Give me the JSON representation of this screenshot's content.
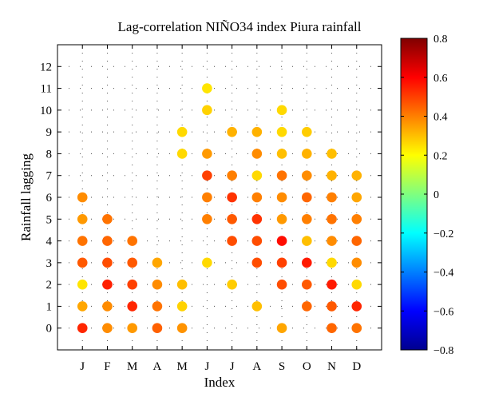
{
  "chart_data": {
    "type": "scatter",
    "title": "Lag-correlation NIÑO34 index Piura rainfall",
    "xlabel": "Index",
    "ylabel": "Rainfall lagging",
    "categories": [
      "J",
      "F",
      "M",
      "A",
      "M",
      "J",
      "J",
      "A",
      "S",
      "O",
      "N",
      "D"
    ],
    "yticks": [
      0,
      1,
      2,
      3,
      4,
      5,
      6,
      7,
      8,
      9,
      10,
      11,
      12
    ],
    "ylim": [
      -1,
      13
    ],
    "colorbar": {
      "min": -0.8,
      "max": 0.8,
      "colormap": "jet",
      "ticks": [
        "0.8",
        "0.6",
        "0.4",
        "0.2",
        "0",
        "−0.2",
        "−0.4",
        "−0.6",
        "−0.8"
      ]
    },
    "grid": "dotted",
    "points": [
      {
        "x": "J",
        "lag": 0,
        "r": 0.54
      },
      {
        "x": "J",
        "lag": 1,
        "r": 0.34
      },
      {
        "x": "J",
        "lag": 2,
        "r": 0.24
      },
      {
        "x": "J",
        "lag": 3,
        "r": 0.46
      },
      {
        "x": "J",
        "lag": 4,
        "r": 0.42
      },
      {
        "x": "J",
        "lag": 5,
        "r": 0.36
      },
      {
        "x": "J",
        "lag": 6,
        "r": 0.38
      },
      {
        "x": "F",
        "lag": 0,
        "r": 0.38
      },
      {
        "x": "F",
        "lag": 1,
        "r": 0.38
      },
      {
        "x": "F",
        "lag": 2,
        "r": 0.55
      },
      {
        "x": "F",
        "lag": 3,
        "r": 0.48
      },
      {
        "x": "F",
        "lag": 4,
        "r": 0.44
      },
      {
        "x": "F",
        "lag": 5,
        "r": 0.42
      },
      {
        "x": "M",
        "lag": 0,
        "r": 0.36
      },
      {
        "x": "M",
        "lag": 1,
        "r": 0.54
      },
      {
        "x": "M",
        "lag": 2,
        "r": 0.5
      },
      {
        "x": "M",
        "lag": 3,
        "r": 0.46
      },
      {
        "x": "M",
        "lag": 4,
        "r": 0.42
      },
      {
        "x": "A",
        "lag": 0,
        "r": 0.45
      },
      {
        "x": "A",
        "lag": 1,
        "r": 0.42
      },
      {
        "x": "A",
        "lag": 2,
        "r": 0.38
      },
      {
        "x": "A",
        "lag": 3,
        "r": 0.34
      },
      {
        "x": "M",
        "lag": 0,
        "r": 0.37,
        "col": 4
      },
      {
        "x": "M",
        "lag": 1,
        "r": 0.27,
        "col": 4
      },
      {
        "x": "M",
        "lag": 2,
        "r": 0.3,
        "col": 4
      },
      {
        "x": "M",
        "lag": 8,
        "r": 0.26,
        "col": 4
      },
      {
        "x": "M",
        "lag": 9,
        "r": 0.26,
        "col": 4
      },
      {
        "x": "J",
        "lag": 3,
        "r": 0.26,
        "col": 5
      },
      {
        "x": "J",
        "lag": 5,
        "r": 0.4,
        "col": 5
      },
      {
        "x": "J",
        "lag": 6,
        "r": 0.4,
        "col": 5
      },
      {
        "x": "J",
        "lag": 7,
        "r": 0.5,
        "col": 5
      },
      {
        "x": "J",
        "lag": 8,
        "r": 0.36,
        "col": 5
      },
      {
        "x": "J",
        "lag": 10,
        "r": 0.27,
        "col": 5
      },
      {
        "x": "J",
        "lag": 11,
        "r": 0.24,
        "col": 5
      },
      {
        "x": "J",
        "lag": 2,
        "r": 0.28,
        "col": 6
      },
      {
        "x": "J",
        "lag": 4,
        "r": 0.48,
        "col": 6
      },
      {
        "x": "J",
        "lag": 5,
        "r": 0.46,
        "col": 6
      },
      {
        "x": "J",
        "lag": 6,
        "r": 0.52,
        "col": 6
      },
      {
        "x": "J",
        "lag": 7,
        "r": 0.4,
        "col": 6
      },
      {
        "x": "J",
        "lag": 9,
        "r": 0.32,
        "col": 6
      },
      {
        "x": "A",
        "lag": 1,
        "r": 0.3,
        "col": 7
      },
      {
        "x": "A",
        "lag": 3,
        "r": 0.48,
        "col": 7
      },
      {
        "x": "A",
        "lag": 4,
        "r": 0.48,
        "col": 7
      },
      {
        "x": "A",
        "lag": 5,
        "r": 0.52,
        "col": 7
      },
      {
        "x": "A",
        "lag": 6,
        "r": 0.4,
        "col": 7
      },
      {
        "x": "A",
        "lag": 7,
        "r": 0.26,
        "col": 7
      },
      {
        "x": "A",
        "lag": 8,
        "r": 0.38,
        "col": 7
      },
      {
        "x": "A",
        "lag": 9,
        "r": 0.32,
        "col": 7
      },
      {
        "x": "S",
        "lag": 0,
        "r": 0.34
      },
      {
        "x": "S",
        "lag": 2,
        "r": 0.48
      },
      {
        "x": "S",
        "lag": 3,
        "r": 0.5
      },
      {
        "x": "S",
        "lag": 4,
        "r": 0.58
      },
      {
        "x": "S",
        "lag": 5,
        "r": 0.36
      },
      {
        "x": "S",
        "lag": 6,
        "r": 0.38
      },
      {
        "x": "S",
        "lag": 7,
        "r": 0.42
      },
      {
        "x": "S",
        "lag": 8,
        "r": 0.3
      },
      {
        "x": "S",
        "lag": 9,
        "r": 0.26
      },
      {
        "x": "S",
        "lag": 10,
        "r": 0.26
      },
      {
        "x": "O",
        "lag": 1,
        "r": 0.44
      },
      {
        "x": "O",
        "lag": 2,
        "r": 0.46
      },
      {
        "x": "O",
        "lag": 3,
        "r": 0.56
      },
      {
        "x": "O",
        "lag": 4,
        "r": 0.3
      },
      {
        "x": "O",
        "lag": 5,
        "r": 0.4
      },
      {
        "x": "O",
        "lag": 6,
        "r": 0.44
      },
      {
        "x": "O",
        "lag": 7,
        "r": 0.38
      },
      {
        "x": "O",
        "lag": 8,
        "r": 0.32
      },
      {
        "x": "O",
        "lag": 9,
        "r": 0.28
      },
      {
        "x": "N",
        "lag": 0,
        "r": 0.44
      },
      {
        "x": "N",
        "lag": 1,
        "r": 0.46
      },
      {
        "x": "N",
        "lag": 2,
        "r": 0.56
      },
      {
        "x": "N",
        "lag": 3,
        "r": 0.26
      },
      {
        "x": "N",
        "lag": 4,
        "r": 0.38
      },
      {
        "x": "N",
        "lag": 5,
        "r": 0.42
      },
      {
        "x": "N",
        "lag": 6,
        "r": 0.4
      },
      {
        "x": "N",
        "lag": 7,
        "r": 0.32
      },
      {
        "x": "N",
        "lag": 8,
        "r": 0.3
      },
      {
        "x": "D",
        "lag": 0,
        "r": 0.42
      },
      {
        "x": "D",
        "lag": 1,
        "r": 0.54
      },
      {
        "x": "D",
        "lag": 2,
        "r": 0.26
      },
      {
        "x": "D",
        "lag": 3,
        "r": 0.38
      },
      {
        "x": "D",
        "lag": 4,
        "r": 0.44
      },
      {
        "x": "D",
        "lag": 5,
        "r": 0.4
      },
      {
        "x": "D",
        "lag": 6,
        "r": 0.34
      },
      {
        "x": "D",
        "lag": 7,
        "r": 0.32
      }
    ]
  }
}
